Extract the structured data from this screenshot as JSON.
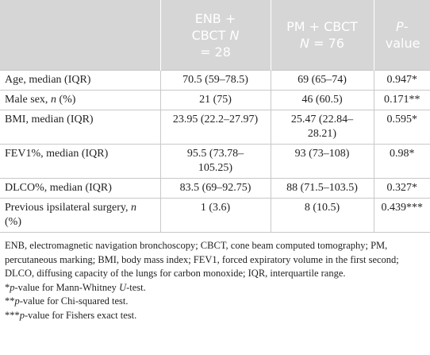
{
  "table": {
    "header": [
      [
        "ENB + CBCT ",
        {
          "italic": "N"
        },
        " = 28"
      ],
      [
        "PM + CBCT ",
        {
          "italic": "N"
        },
        " = 76"
      ],
      [
        {
          "italic": "P"
        },
        "-value"
      ]
    ],
    "rows": [
      [
        "Age, median (IQR)",
        "70.5 (59–78.5)",
        "69 (65–74)",
        "0.947*"
      ],
      [
        [
          "Male sex, ",
          {
            "italic": "n"
          },
          " (%)"
        ],
        "21 (75)",
        "46 (60.5)",
        "0.171**"
      ],
      [
        "BMI, median (IQR)",
        "23.95 (22.2–27.97)",
        "25.47 (22.84–28.21)",
        "0.595*"
      ],
      [
        "FEV1%, median (IQR)",
        "95.5 (73.78–105.25)",
        "93 (73–108)",
        "0.98*"
      ],
      [
        "DLCO%, median (IQR)",
        "83.5 (69–92.75)",
        "88 (71.5–103.5)",
        "0.327*"
      ],
      [
        [
          "Previous ipsilateral surgery, ",
          {
            "italic": "n"
          },
          " (%)"
        ],
        "1 (3.6)",
        "8 (10.5)",
        "0.439***"
      ]
    ]
  },
  "footnotes": [
    "ENB, electromagnetic navigation bronchoscopy; CBCT, cone beam computed tomography; PM, percutaneous marking; BMI, body mass index; FEV1, forced expiratory volume in the first second; DLCO, diffusing capacity of the lungs for carbon monoxide; IQR, interquartile range.",
    [
      "*",
      {
        "italic": "p"
      },
      "-value for Mann-Whitney ",
      {
        "italic": "U"
      },
      "-test."
    ],
    [
      "**",
      {
        "italic": "p"
      },
      "-value for Chi-squared test."
    ],
    [
      "***",
      {
        "italic": "p"
      },
      "-value for Fishers exact test."
    ]
  ]
}
